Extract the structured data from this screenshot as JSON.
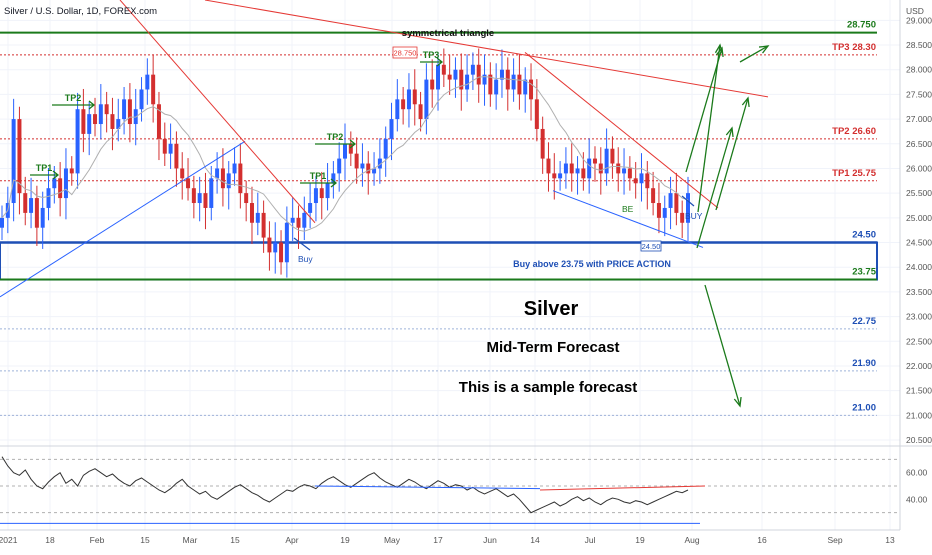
{
  "header": {
    "symbol_title": "Silver / U.S. Dollar, 1D, FOREX.com"
  },
  "colors": {
    "up": "#2962ff",
    "down": "#d32f2f",
    "green": "#1b7a1b",
    "red": "#e53935",
    "blue": "#1e4fb5",
    "grid": "#f0f3fa",
    "ma": "#b0b0b0",
    "osc": "#333333"
  },
  "annotations": {
    "main_title": "Silver",
    "subtitle": "Mid-Term Forecast",
    "note": "This is a sample forecast",
    "triangle_label": "symmetrical triangle",
    "buy_zone_text": "Buy above 23.75 with PRICE ACTION",
    "buy_1": "Buy",
    "buy_2": "BUY",
    "be": "BE",
    "box_28750": "28.750",
    "box_2450": "24.50",
    "tp_labels": {
      "tp1_a": "TP1",
      "tp2_a": "TP2",
      "tp1_b": "TP1",
      "tp2_b": "TP2",
      "tp3": "TP3"
    }
  },
  "chart_data": {
    "type": "candlestick",
    "title": "Silver / U.S. Dollar, 1D, FOREX.com",
    "x_ticks": [
      "2021",
      "18",
      "Feb",
      "15",
      "Mar",
      "15",
      "Apr",
      "19",
      "May",
      "17",
      "Jun",
      "14",
      "Jul",
      "19",
      "Aug",
      "16",
      "Sep",
      "13"
    ],
    "y_ticks": [
      "29.000",
      "28.500",
      "28.000",
      "27.500",
      "27.000",
      "26.500",
      "26.000",
      "25.500",
      "25.000",
      "24.500",
      "24.000",
      "23.500",
      "23.000",
      "22.500",
      "22.000",
      "21.500",
      "21.000",
      "20.500"
    ],
    "y_top_tick": "USD",
    "ylim": [
      20.5,
      29.25
    ],
    "levels": [
      {
        "value": 28.75,
        "label": "28.750",
        "color": "#1b7a1b"
      },
      {
        "value": 28.3,
        "label": "TP3 28.30",
        "color": "#d32f2f"
      },
      {
        "value": 26.6,
        "label": "TP2 26.60",
        "color": "#d32f2f"
      },
      {
        "value": 25.75,
        "label": "TP1 25.75",
        "color": "#d32f2f"
      },
      {
        "value": 24.5,
        "label": "24.50",
        "color": "#1e4fb5"
      },
      {
        "value": 23.75,
        "label": "23.75",
        "color": "#1b7a1b"
      },
      {
        "value": 22.75,
        "label": "22.75",
        "color": "#1e4fb5"
      },
      {
        "value": 21.9,
        "label": "21.90",
        "color": "#1e4fb5"
      },
      {
        "value": 21.0,
        "label": "21.00",
        "color": "#1e4fb5"
      }
    ],
    "close_series": [
      25.0,
      25.3,
      27.0,
      25.5,
      25.1,
      25.4,
      24.8,
      25.2,
      25.6,
      25.8,
      25.4,
      26.0,
      25.9,
      27.2,
      26.7,
      27.1,
      26.9,
      27.3,
      27.1,
      26.8,
      27.0,
      27.4,
      26.9,
      27.2,
      27.6,
      27.9,
      27.3,
      26.6,
      26.3,
      26.5,
      26.0,
      25.8,
      25.6,
      25.3,
      25.5,
      25.2,
      25.8,
      26.0,
      25.6,
      25.9,
      26.1,
      25.5,
      25.3,
      24.9,
      25.1,
      24.6,
      24.3,
      24.5,
      24.1,
      24.9,
      25.0,
      24.8,
      25.1,
      25.3,
      25.6,
      25.4,
      25.7,
      25.9,
      26.2,
      26.5,
      26.3,
      26.0,
      26.1,
      25.9,
      26.0,
      26.2,
      26.6,
      27.0,
      27.4,
      27.2,
      27.6,
      27.3,
      27.0,
      27.8,
      27.6,
      28.1,
      27.9,
      27.8,
      28.0,
      27.6,
      27.9,
      28.1,
      27.7,
      27.9,
      27.5,
      27.8,
      28.0,
      27.6,
      27.9,
      27.5,
      27.8,
      27.4,
      26.8,
      26.2,
      25.9,
      25.8,
      25.9,
      26.1,
      25.9,
      26.0,
      25.8,
      26.2,
      26.1,
      25.9,
      26.4,
      26.1,
      25.9,
      26.0,
      25.8,
      25.7,
      25.9,
      25.6,
      25.3,
      25.0,
      25.2,
      25.5,
      25.1,
      24.9,
      25.5
    ],
    "oscillator": {
      "yticks": [
        "60.00",
        "40.00"
      ],
      "levels": [
        70,
        50,
        30
      ],
      "values": [
        72,
        65,
        60,
        58,
        62,
        55,
        50,
        48,
        53,
        57,
        60,
        52,
        55,
        50,
        58,
        61,
        63,
        60,
        57,
        59,
        55,
        52,
        50,
        54,
        56,
        53,
        50,
        47,
        45,
        48,
        52,
        55,
        50,
        47,
        44,
        46,
        42,
        40,
        43,
        46,
        49,
        51,
        48,
        45,
        43,
        40,
        38,
        41,
        44,
        47,
        46,
        49,
        51,
        50,
        48,
        52,
        55,
        57,
        54,
        51,
        49,
        52,
        55,
        58,
        60,
        56,
        53,
        51,
        49,
        52,
        55,
        53,
        50,
        48,
        51,
        54,
        52,
        49,
        51,
        50,
        47,
        49,
        46,
        44,
        46,
        48,
        45,
        42,
        44,
        40,
        35,
        30,
        32,
        34,
        36,
        38,
        35,
        37,
        40,
        42,
        39,
        41,
        38,
        36,
        39,
        41,
        40,
        38,
        37,
        39,
        38,
        36,
        38,
        40,
        42,
        44,
        46,
        45,
        47
      ]
    }
  }
}
